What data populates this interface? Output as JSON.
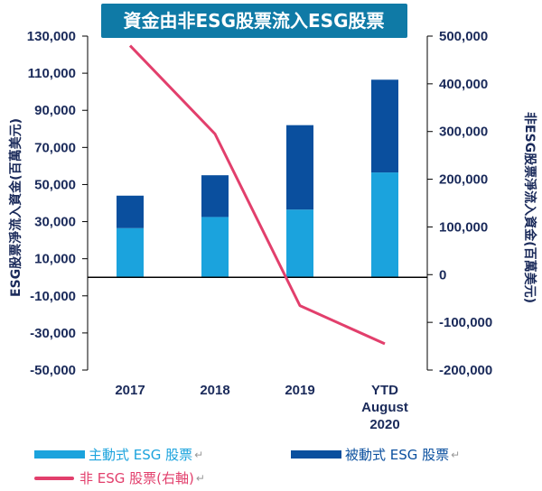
{
  "title": "資金由非ESG股票流入ESG股票",
  "colors": {
    "active": "#1ba3dd",
    "passive": "#0a4f9e",
    "non_esg": "#e23f6c",
    "title_bg": "#0f7aa6",
    "axis_text": "#1a2a5a"
  },
  "chart_data": {
    "type": "bar",
    "stacked": true,
    "categories": [
      "2017",
      "2018",
      "2019",
      "YTD August 2020"
    ],
    "series": [
      {
        "name": "主動式 ESG 股票",
        "axis": "left",
        "values": [
          26500,
          32500,
          36500,
          56500
        ]
      },
      {
        "name": "被動式 ESG 股票",
        "axis": "left",
        "values": [
          17500,
          22500,
          45500,
          50000
        ]
      },
      {
        "name": "非 ESG 股票(右軸)",
        "axis": "right",
        "type": "line",
        "values": [
          480000,
          295000,
          -65000,
          -145000
        ]
      }
    ],
    "y_left": {
      "label": "ESG股票淨流入資金(百萬美元)",
      "min": -50000,
      "max": 130000,
      "ticks": [
        "130,000",
        "110,000",
        "90,000",
        "70,000",
        "50,000",
        "30,000",
        "10,000",
        "-10,000",
        "-30,000",
        "-50,000"
      ]
    },
    "y_right": {
      "label": "非ESG股票淨流入資金(百萬美元)",
      "min": -200000,
      "max": 500000,
      "ticks": [
        "500,000",
        "400,000",
        "300,000",
        "200,000",
        "100,000",
        "0",
        "-100,000",
        "-200,000"
      ]
    },
    "legend_position": "bottom"
  },
  "legend": {
    "active": "主動式 ESG 股票",
    "passive": "被動式 ESG 股票",
    "non_esg": "非 ESG 股票(右軸)",
    "return_mark": "↵"
  }
}
